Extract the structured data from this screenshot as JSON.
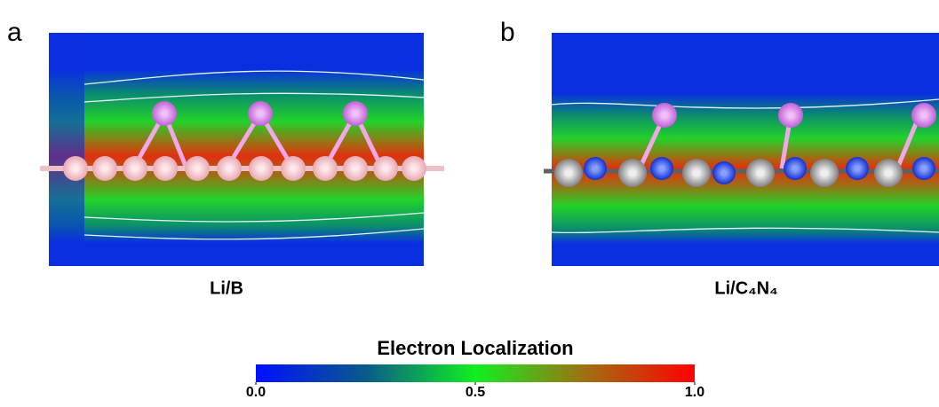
{
  "panels": [
    {
      "label": "a",
      "caption": "Li/B"
    },
    {
      "label": "b",
      "caption": "Li/C₄N₄"
    }
  ],
  "colorbar": {
    "title": "Electron Localization",
    "range": [
      0,
      1
    ],
    "ticks": [
      {
        "value": 0,
        "label": "0.0"
      },
      {
        "value": 0.5,
        "label": "0.5"
      },
      {
        "value": 1,
        "label": "1.0"
      }
    ]
  }
}
